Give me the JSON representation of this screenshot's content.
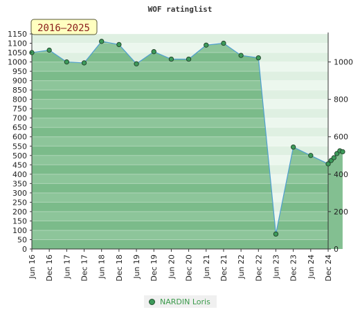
{
  "chart_data": {
    "type": "area",
    "title": "WOF ratinglist",
    "badge": "2016–2025",
    "categories": [
      "Jun 16",
      "Dec 16",
      "Jun 17",
      "Dec 17",
      "Jun 18",
      "Dec 18",
      "Jun 19",
      "Dec 19",
      "Jun 20",
      "Dec 20",
      "Jun 21",
      "Dec 21",
      "Jun 22",
      "Dec 22",
      "Jun 23",
      "Dec 23",
      "Jun 24",
      "Dec 24"
    ],
    "left_axis": {
      "ylim": [
        0,
        1150
      ],
      "ticks": [
        0,
        50,
        100,
        150,
        200,
        250,
        300,
        350,
        400,
        450,
        500,
        550,
        600,
        650,
        700,
        750,
        800,
        850,
        900,
        950,
        1000,
        1050,
        1100,
        1150
      ]
    },
    "right_axis": {
      "ylim": [
        0,
        1150
      ],
      "ticks": [
        0,
        200,
        400,
        600,
        800,
        1000
      ]
    },
    "series": [
      {
        "name": "NARDIN Loris",
        "color": "#4f9fd0",
        "fill": "#5aaa6c",
        "points": [
          {
            "x": 0,
            "y": 1050
          },
          {
            "x": 1,
            "y": 1063
          },
          {
            "x": 2,
            "y": 1000
          },
          {
            "x": 3,
            "y": 995
          },
          {
            "x": 4,
            "y": 1110
          },
          {
            "x": 5,
            "y": 1093
          },
          {
            "x": 6,
            "y": 990
          },
          {
            "x": 7,
            "y": 1055
          },
          {
            "x": 8,
            "y": 1015
          },
          {
            "x": 9,
            "y": 1015
          },
          {
            "x": 10,
            "y": 1090
          },
          {
            "x": 11,
            "y": 1100
          },
          {
            "x": 12,
            "y": 1035
          },
          {
            "x": 13,
            "y": 1022
          },
          {
            "x": 14,
            "y": 80
          },
          {
            "x": 15,
            "y": 545
          },
          {
            "x": 16,
            "y": 500
          },
          {
            "x": 17,
            "y": 455
          },
          {
            "x": 17.17,
            "y": 473
          },
          {
            "x": 17.33,
            "y": 488
          },
          {
            "x": 17.5,
            "y": 510
          },
          {
            "x": 17.67,
            "y": 525
          },
          {
            "x": 17.83,
            "y": 520
          }
        ]
      }
    ],
    "grid": true,
    "legend_position": "bottom-center"
  }
}
